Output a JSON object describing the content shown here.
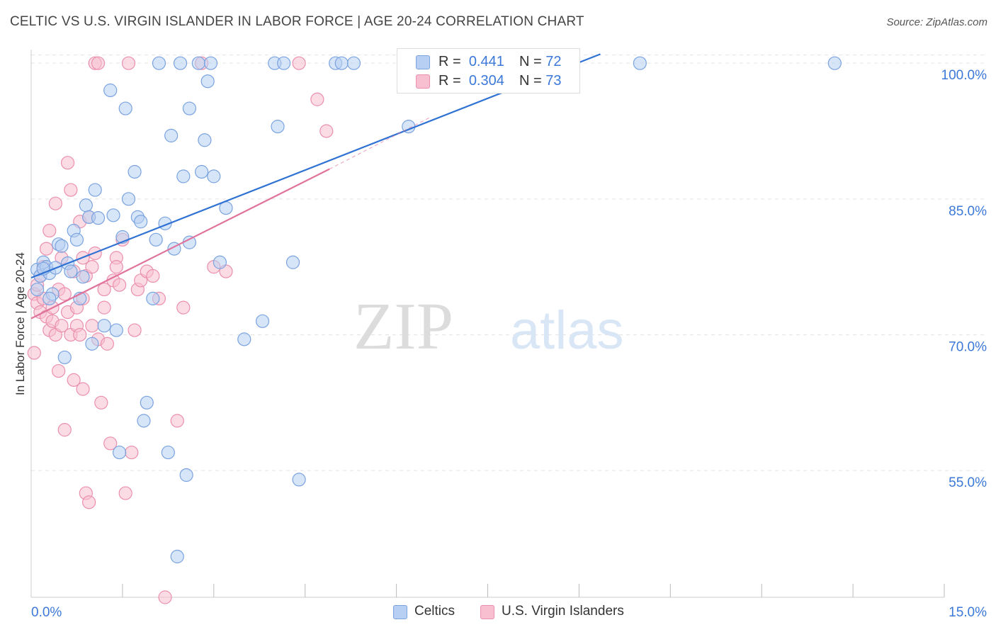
{
  "header": {
    "title": "CELTIC VS U.S. VIRGIN ISLANDER IN LABOR FORCE | AGE 20-24 CORRELATION CHART",
    "source": "Source: ZipAtlas.com"
  },
  "watermark": {
    "zip": "ZIP",
    "atlas": "atlas"
  },
  "legend": {
    "rows": [
      {
        "r_label": "R =",
        "r_value": "0.441",
        "n_label": "N =",
        "n_value": "72"
      },
      {
        "r_label": "R =",
        "r_value": "0.304",
        "n_label": "N =",
        "n_value": "73"
      }
    ],
    "bottom": [
      "Celtics",
      "U.S. Virgin Islanders"
    ]
  },
  "colors": {
    "celtics_fill": "#b7cff2",
    "celtics_stroke": "#7aa3e0",
    "celtics_line": "#2f72d4",
    "usvi_fill": "#f7bfd0",
    "usvi_stroke": "#eb8fae",
    "usvi_line": "#e0739b",
    "axis_text": "#3b78d8",
    "grid": "#e3e3e3"
  },
  "chart_data": {
    "type": "scatter",
    "title": "CELTIC VS U.S. VIRGIN ISLANDER IN LABOR FORCE | AGE 20-24 CORRELATION CHART",
    "xlabel": "",
    "ylabel": "In Labor Force | Age 20-24",
    "xlim": [
      0,
      15
    ],
    "ylim": [
      41,
      101.5
    ],
    "x_tick_labels": [
      "0.0%",
      "15.0%"
    ],
    "y_ticks": [
      55,
      70,
      85,
      100
    ],
    "y_tick_labels": [
      "55.0%",
      "70.0%",
      "85.0%",
      "100.0%"
    ],
    "series": [
      {
        "name": "Celtics",
        "R": 0.441,
        "N": 72,
        "trend": {
          "x": [
            0.0,
            9.35
          ],
          "y": [
            76.3,
            101.0
          ]
        },
        "points": [
          [
            0.1,
            77.2
          ],
          [
            0.1,
            75.0
          ],
          [
            0.15,
            76.5
          ],
          [
            0.2,
            78.0
          ],
          [
            0.25,
            77.5
          ],
          [
            0.3,
            76.8
          ],
          [
            0.35,
            74.5
          ],
          [
            0.4,
            77.4
          ],
          [
            0.45,
            80.0
          ],
          [
            0.5,
            79.8
          ],
          [
            0.55,
            67.5
          ],
          [
            0.6,
            77.9
          ],
          [
            0.65,
            77.0
          ],
          [
            0.7,
            81.5
          ],
          [
            0.75,
            80.5
          ],
          [
            0.8,
            74.0
          ],
          [
            0.85,
            76.4
          ],
          [
            0.9,
            84.3
          ],
          [
            0.95,
            83.0
          ],
          [
            1.0,
            69.0
          ],
          [
            1.05,
            86.0
          ],
          [
            1.1,
            82.9
          ],
          [
            1.2,
            71.0
          ],
          [
            1.3,
            97.0
          ],
          [
            1.4,
            70.5
          ],
          [
            1.45,
            57.0
          ],
          [
            1.5,
            80.8
          ],
          [
            1.55,
            95.0
          ],
          [
            1.6,
            85.0
          ],
          [
            1.7,
            88.0
          ],
          [
            1.75,
            83.0
          ],
          [
            1.8,
            82.5
          ],
          [
            1.85,
            60.5
          ],
          [
            1.9,
            62.5
          ],
          [
            2.0,
            74.0
          ],
          [
            2.05,
            80.5
          ],
          [
            2.1,
            100.0
          ],
          [
            2.2,
            82.3
          ],
          [
            2.25,
            57.0
          ],
          [
            2.3,
            92.0
          ],
          [
            2.35,
            79.5
          ],
          [
            2.4,
            45.5
          ],
          [
            2.45,
            100.0
          ],
          [
            2.5,
            87.5
          ],
          [
            2.55,
            54.5
          ],
          [
            2.6,
            95.0
          ],
          [
            2.75,
            100.0
          ],
          [
            2.8,
            88.0
          ],
          [
            2.85,
            91.5
          ],
          [
            2.9,
            98.0
          ],
          [
            2.95,
            100.0
          ],
          [
            3.0,
            87.5
          ],
          [
            3.1,
            78.0
          ],
          [
            3.2,
            84.0
          ],
          [
            3.5,
            69.5
          ],
          [
            3.8,
            71.5
          ],
          [
            4.0,
            100.0
          ],
          [
            4.05,
            93.0
          ],
          [
            4.15,
            100.0
          ],
          [
            4.3,
            78.0
          ],
          [
            4.4,
            54.0
          ],
          [
            5.0,
            100.0
          ],
          [
            5.1,
            100.0
          ],
          [
            5.3,
            100.0
          ],
          [
            6.2,
            93.0
          ],
          [
            7.0,
            100.0
          ],
          [
            10.0,
            100.0
          ],
          [
            13.2,
            100.0
          ],
          [
            0.2,
            77.3
          ],
          [
            0.3,
            74.0
          ],
          [
            1.35,
            83.2
          ],
          [
            2.6,
            80.2
          ]
        ]
      },
      {
        "name": "U.S. Virgin Islanders",
        "R": 0.304,
        "N": 73,
        "trend": {
          "x": [
            0.0,
            4.9
          ],
          "y": [
            71.8,
            88.3
          ]
        },
        "trend_extension": {
          "x": [
            4.9,
            6.55
          ],
          "y": [
            88.3,
            94.0
          ]
        },
        "points": [
          [
            0.05,
            74.5
          ],
          [
            0.05,
            68.0
          ],
          [
            0.1,
            75.5
          ],
          [
            0.1,
            73.5
          ],
          [
            0.15,
            76.5
          ],
          [
            0.15,
            72.5
          ],
          [
            0.2,
            77.5
          ],
          [
            0.2,
            74.0
          ],
          [
            0.25,
            72.0
          ],
          [
            0.25,
            79.5
          ],
          [
            0.3,
            81.5
          ],
          [
            0.3,
            70.5
          ],
          [
            0.35,
            73.0
          ],
          [
            0.35,
            71.5
          ],
          [
            0.4,
            84.5
          ],
          [
            0.4,
            70.0
          ],
          [
            0.45,
            75.0
          ],
          [
            0.45,
            66.0
          ],
          [
            0.5,
            78.5
          ],
          [
            0.5,
            71.0
          ],
          [
            0.55,
            59.5
          ],
          [
            0.55,
            74.5
          ],
          [
            0.6,
            89.0
          ],
          [
            0.6,
            72.5
          ],
          [
            0.65,
            86.0
          ],
          [
            0.65,
            70.0
          ],
          [
            0.7,
            77.0
          ],
          [
            0.7,
            65.0
          ],
          [
            0.75,
            73.0
          ],
          [
            0.75,
            71.0
          ],
          [
            0.8,
            82.5
          ],
          [
            0.8,
            70.0
          ],
          [
            0.85,
            74.0
          ],
          [
            0.85,
            64.0
          ],
          [
            0.9,
            76.5
          ],
          [
            0.9,
            52.5
          ],
          [
            0.95,
            83.0
          ],
          [
            0.95,
            51.5
          ],
          [
            1.0,
            71.0
          ],
          [
            1.0,
            77.5
          ],
          [
            1.05,
            79.0
          ],
          [
            1.05,
            100.0
          ],
          [
            1.1,
            100.0
          ],
          [
            1.1,
            69.5
          ],
          [
            1.15,
            62.5
          ],
          [
            1.2,
            73.0
          ],
          [
            1.2,
            75.0
          ],
          [
            1.25,
            69.0
          ],
          [
            1.3,
            58.0
          ],
          [
            1.35,
            76.0
          ],
          [
            1.4,
            78.5
          ],
          [
            1.4,
            77.5
          ],
          [
            1.45,
            75.5
          ],
          [
            1.5,
            80.5
          ],
          [
            1.55,
            52.5
          ],
          [
            1.6,
            100.0
          ],
          [
            1.65,
            57.0
          ],
          [
            1.7,
            70.5
          ],
          [
            1.75,
            75.0
          ],
          [
            1.8,
            76.0
          ],
          [
            1.9,
            77.0
          ],
          [
            2.0,
            76.5
          ],
          [
            2.1,
            74.0
          ],
          [
            2.2,
            41.0
          ],
          [
            2.4,
            60.5
          ],
          [
            2.5,
            73.0
          ],
          [
            2.8,
            100.0
          ],
          [
            3.0,
            77.5
          ],
          [
            3.2,
            77.0
          ],
          [
            4.4,
            100.0
          ],
          [
            4.7,
            96.0
          ],
          [
            4.85,
            92.5
          ],
          [
            0.85,
            78.5
          ]
        ]
      }
    ]
  }
}
